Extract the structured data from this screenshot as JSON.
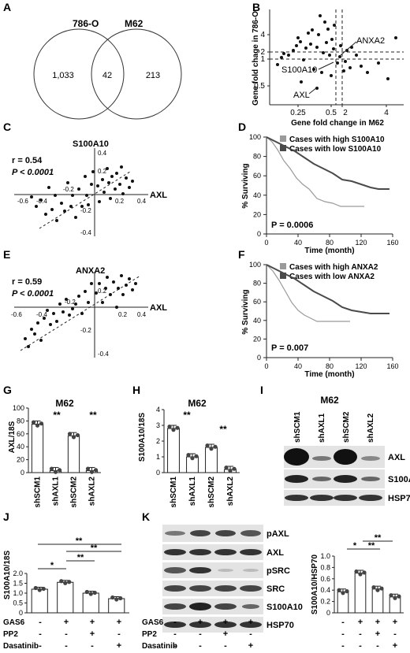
{
  "panels": {
    "A": "A",
    "B": "B",
    "C": "C",
    "D": "D",
    "E": "E",
    "F": "F",
    "G": "G",
    "H": "H",
    "I": "I",
    "J": "J",
    "K": "K"
  },
  "venn": {
    "left_label": "786-O",
    "right_label": "M62",
    "left_only": "1,033",
    "overlap": "42",
    "right_only": "213"
  },
  "panelB": {
    "ylabel1": "Gene fold chage in 786-O",
    "xlabel": "Gene fold change in M62",
    "yticks": [
      "0.5",
      "1",
      "2",
      "4"
    ],
    "xticks": [
      "0.25",
      "0.5",
      "2",
      "4"
    ],
    "labels": {
      "anxa2": "ANXA2",
      "s100a10": "S100A10",
      "axl": "AXL"
    }
  },
  "panelC": {
    "r": "r = 0.54",
    "p": "P < 0.0001",
    "gene": "S100A10",
    "axis": "AXL",
    "yticks": [
      "0.4",
      "0.2",
      "-0.2",
      "-0.4"
    ],
    "xticks": [
      "-0.6",
      "-0.4",
      "-0.2",
      "0.2",
      "0.4"
    ]
  },
  "panelD": {
    "legend_high": "Cases with high S100A10",
    "legend_low": "Cases with low S100A10",
    "p": "P = 0.0006",
    "ylabel": "% Surviving",
    "xlabel": "Time (month)",
    "yticks": [
      "100",
      "80",
      "60",
      "40",
      "20",
      "0"
    ],
    "xticks": [
      "0",
      "40",
      "80",
      "120",
      "160"
    ]
  },
  "panelE": {
    "r": "r = 0.59",
    "p": "P < 0.0001",
    "gene": "ANXA2",
    "axis": "AXL",
    "yticks": [
      "0.2",
      "-0.2",
      "-0.4"
    ],
    "xticks": [
      "-0.6",
      "-0.4",
      "-0.2",
      "0.2",
      "0.4"
    ]
  },
  "panelF": {
    "legend_high": "Cases with high ANXA2",
    "legend_low": "Cases with low ANXA2",
    "p": "P = 0.007",
    "ylabel": "% Surviving",
    "xlabel": "Time (month)",
    "yticks": [
      "100",
      "80",
      "60",
      "40",
      "20",
      "0"
    ],
    "xticks": [
      "0",
      "40",
      "80",
      "120",
      "160"
    ]
  },
  "panelG": {
    "title": "M62",
    "ylabel": "AXL/18S",
    "yticks": [
      "100",
      "80",
      "60",
      "40",
      "20",
      "0"
    ],
    "sig": "**",
    "groups": [
      "shSCM1",
      "shAXL1",
      "shSCM2",
      "shAXL2"
    ]
  },
  "panelH": {
    "title": "M62",
    "ylabel": "S100A10/18S",
    "yticks": [
      "4",
      "3",
      "2",
      "1",
      "0"
    ],
    "sig": "**",
    "groups": [
      "shSCM1",
      "shAXL1",
      "shSCM2",
      "shAXL2"
    ]
  },
  "panelI": {
    "title": "M62",
    "lanes": [
      "shSCM1",
      "shAXL1",
      "shSCM2",
      "shAXL2"
    ],
    "bands": [
      "AXL",
      "S100A10",
      "HSP70"
    ]
  },
  "panelJ": {
    "ylabel": "S100A10/18S",
    "yticks": [
      "2.0",
      "1.5",
      "1.0",
      "0.5",
      "0"
    ],
    "sig1": "*",
    "sig2": "**"
  },
  "panelK": {
    "bands": [
      "pAXL",
      "AXL",
      "pSRC",
      "SRC",
      "S100A10",
      "HSP70"
    ],
    "ylabel": "S100A10/HSP70",
    "yticks": [
      "1.0",
      "0.8",
      "0.6",
      "0.4",
      "0.2",
      "0"
    ],
    "sig1": "*",
    "sig2": "**"
  },
  "treatments": {
    "gas6": "GAS6",
    "pp2": "PP2",
    "dasatinib": "Dasatinib",
    "minus": "-",
    "plus": "+"
  },
  "chart_data": [
    {
      "panel": "G",
      "type": "bar",
      "categories": [
        "shSCM1",
        "shAXL1",
        "shSCM2",
        "shAXL2"
      ],
      "values": [
        75,
        3,
        57,
        3
      ],
      "ylabel": "AXL/18S",
      "ylim": [
        0,
        100
      ]
    },
    {
      "panel": "H",
      "type": "bar",
      "categories": [
        "shSCM1",
        "shAXL1",
        "shSCM2",
        "shAXL2"
      ],
      "values": [
        2.8,
        1.0,
        1.6,
        0.2
      ],
      "ylabel": "S100A10/18S",
      "ylim": [
        0,
        4
      ]
    },
    {
      "panel": "J",
      "type": "bar",
      "categories": [
        "Control",
        "GAS6",
        "GAS6+PP2",
        "GAS6+Dasatinib"
      ],
      "values": [
        1.2,
        1.55,
        1.0,
        0.72
      ],
      "ylabel": "S100A10/18S",
      "ylim": [
        0,
        2
      ]
    },
    {
      "panel": "K",
      "type": "bar",
      "categories": [
        "Control",
        "GAS6",
        "GAS6+PP2",
        "GAS6+Dasatinib"
      ],
      "values": [
        0.37,
        0.7,
        0.42,
        0.28
      ],
      "ylabel": "S100A10/HSP70",
      "ylim": [
        0,
        1
      ]
    }
  ]
}
